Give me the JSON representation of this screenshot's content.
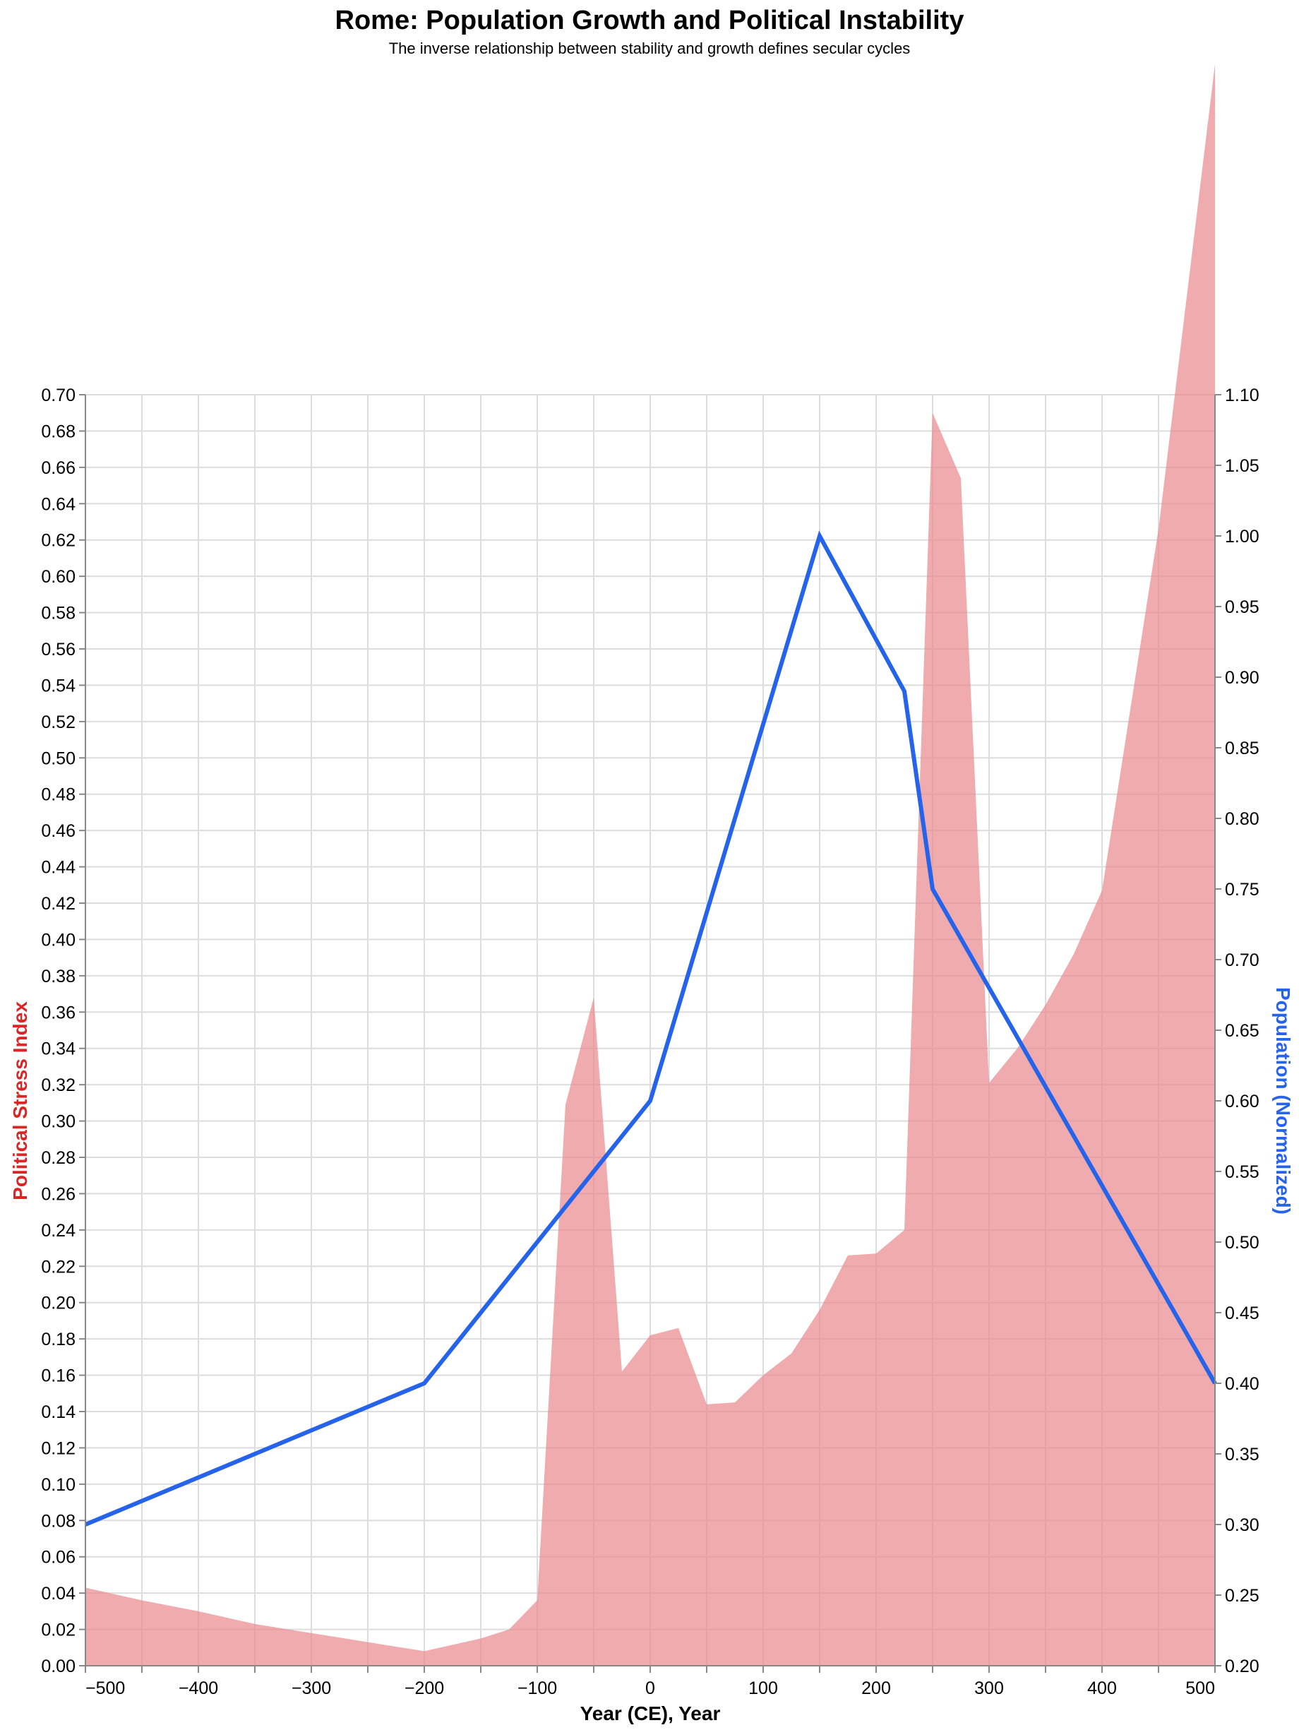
{
  "chart_data": {
    "type": "area+line (dual axis)",
    "title": "Rome: Population Growth and Political Instability",
    "subtitle": "The inverse relationship between stability and growth defines secular cycles",
    "xlabel": "Year (CE), Year",
    "x_ticks": [
      -500,
      -400,
      -300,
      -200,
      -100,
      0,
      100,
      200,
      300,
      400,
      500
    ],
    "x_tick_labels": [
      "−500",
      "−400",
      "−300",
      "−200",
      "−100",
      "0",
      "100",
      "200",
      "300",
      "400",
      "500"
    ],
    "xlim": [
      -500,
      500
    ],
    "grid": true,
    "y_left": {
      "label": "Political Stress Index",
      "color": "#dc2626",
      "ylim": [
        0,
        0.7
      ],
      "tick_step": 0.02,
      "tick_labels": [
        "0.00",
        "0.02",
        "0.04",
        "0.06",
        "0.08",
        "0.10",
        "0.12",
        "0.14",
        "0.16",
        "0.18",
        "0.20",
        "0.22",
        "0.24",
        "0.26",
        "0.28",
        "0.30",
        "0.32",
        "0.34",
        "0.36",
        "0.38",
        "0.40",
        "0.42",
        "0.44",
        "0.46",
        "0.48",
        "0.50",
        "0.52",
        "0.54",
        "0.56",
        "0.58",
        "0.60",
        "0.62",
        "0.64",
        "0.66",
        "0.68",
        "0.70"
      ]
    },
    "y_right": {
      "label": "Population (Normalized)",
      "color": "#2563eb",
      "ylim": [
        0.2,
        1.1
      ],
      "tick_step": 0.05,
      "tick_labels": [
        "0.20",
        "0.25",
        "0.30",
        "0.35",
        "0.40",
        "0.45",
        "0.50",
        "0.55",
        "0.60",
        "0.65",
        "0.70",
        "0.75",
        "0.80",
        "0.85",
        "0.90",
        "0.95",
        "1.00",
        "1.05",
        "1.10"
      ]
    },
    "series": [
      {
        "name": "Political Stress Index",
        "type": "area",
        "axis": "left",
        "color": "#e8878a",
        "opacity": 0.7,
        "x": [
          -500,
          -450,
          -400,
          -350,
          -300,
          -250,
          -200,
          -150,
          -125,
          -100,
          -75,
          -50,
          -25,
          0,
          25,
          50,
          75,
          100,
          125,
          150,
          175,
          200,
          225,
          250,
          275,
          300,
          325,
          350,
          375,
          400,
          450,
          475,
          500
        ],
        "values": [
          0.043,
          0.036,
          0.03,
          0.023,
          0.018,
          0.013,
          0.008,
          0.015,
          0.02,
          0.036,
          0.309,
          0.368,
          0.162,
          0.182,
          0.186,
          0.144,
          0.145,
          0.16,
          0.172,
          0.196,
          0.226,
          0.227,
          0.24,
          0.69,
          0.654,
          0.321,
          0.34,
          0.364,
          0.392,
          0.427,
          0.626,
          0.754,
          0.882
        ]
      },
      {
        "name": "Population (Normalized)",
        "type": "line",
        "axis": "right",
        "color": "#2563eb",
        "x": [
          -500,
          -200,
          0,
          150,
          225,
          250,
          500
        ],
        "values": [
          0.3,
          0.4,
          0.6,
          1.0,
          0.89,
          0.75,
          0.4
        ]
      }
    ]
  }
}
